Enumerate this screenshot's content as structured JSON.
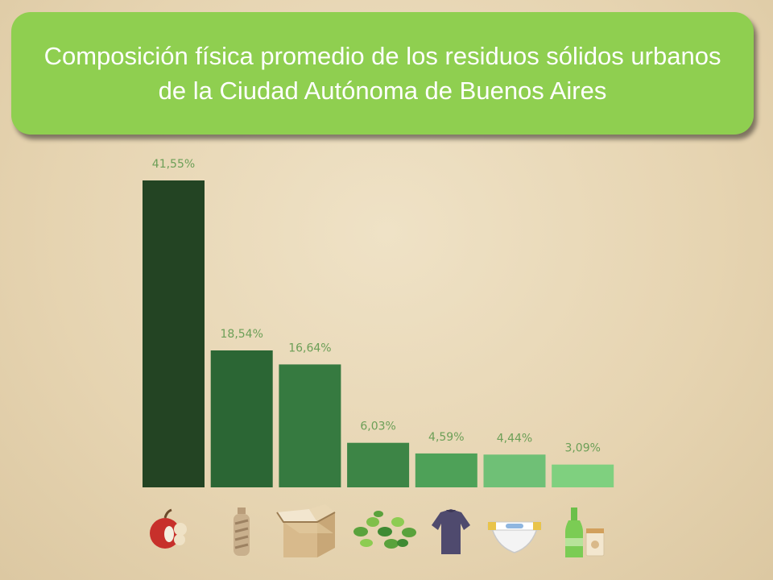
{
  "title": "Composición física promedio de los residuos sólidos urbanos de la Ciudad Autónoma de Buenos Aires",
  "chart_data": {
    "type": "bar",
    "categories": [
      "food-waste-icon",
      "plastic-bottle-icon",
      "cardboard-box-icon",
      "garden-waste-icon",
      "textile-shirt-icon",
      "diaper-icon",
      "glass-bottle-icon"
    ],
    "values": [
      41.55,
      18.54,
      16.64,
      6.03,
      4.59,
      4.44,
      3.09
    ],
    "labels": [
      "41,55%",
      "18,54%",
      "16,64%",
      "6,03%",
      "4,59%",
      "4,44%",
      "3,09%"
    ],
    "colors": [
      "#234423",
      "#2b6634",
      "#367a40",
      "#3d8546",
      "#4ea158",
      "#6fc076",
      "#7fd07f"
    ],
    "label_color": "#6c9f57",
    "ylim": [
      0,
      41.55
    ]
  }
}
